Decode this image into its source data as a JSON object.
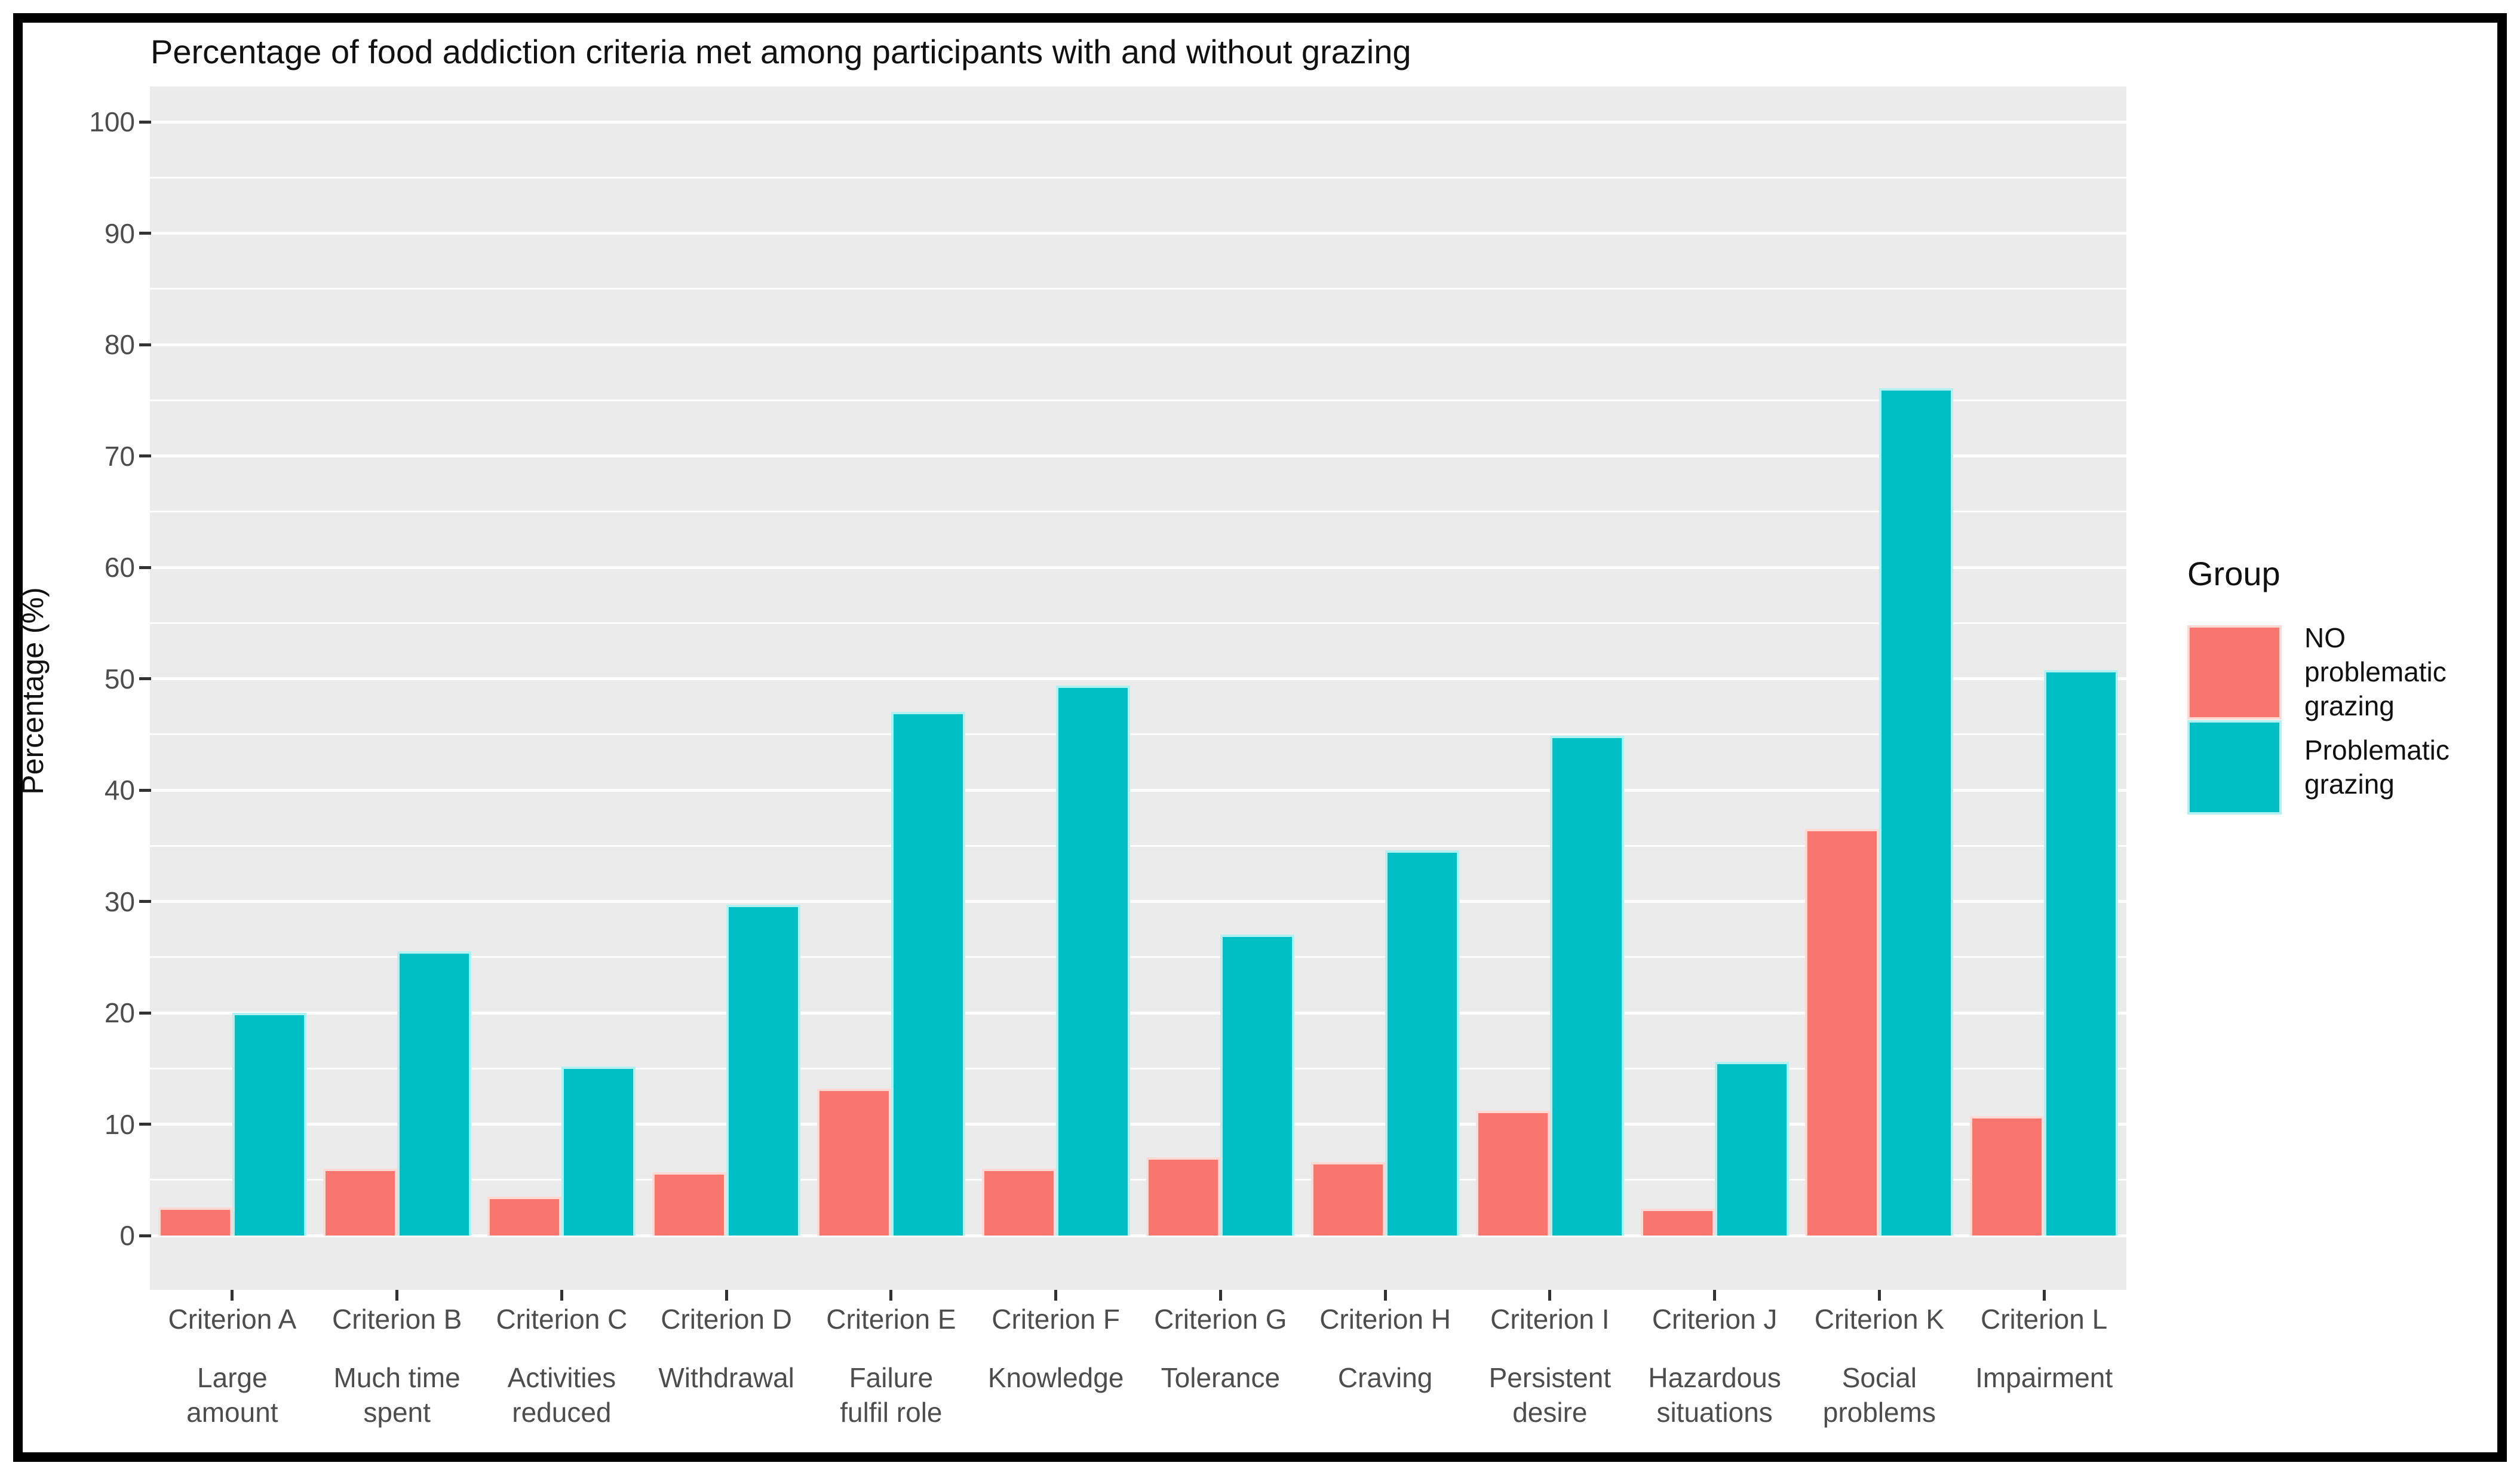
{
  "chart_data": {
    "type": "bar",
    "title": "Percentage of food addiction criteria met among participants with and without grazing",
    "ylabel": "Percentage (%)",
    "xlabel": "",
    "ylim": [
      0,
      100
    ],
    "yticks": [
      0,
      10,
      20,
      30,
      40,
      50,
      60,
      70,
      80,
      90,
      100
    ],
    "minor_tick_interval": 5,
    "grid": "on",
    "panel_background": "#EBEBEB",
    "gridline_color": "#FFFFFF",
    "legend_position": "right",
    "legend_title": "Group",
    "categories": [
      {
        "tick": "Criterion A",
        "label": "Large\namount"
      },
      {
        "tick": "Criterion B",
        "label": "Much time\nspent"
      },
      {
        "tick": "Criterion C",
        "label": "Activities\nreduced"
      },
      {
        "tick": "Criterion D",
        "label": "Withdrawal"
      },
      {
        "tick": "Criterion E",
        "label": "Failure\nfulfil role"
      },
      {
        "tick": "Criterion F",
        "label": "Knowledge"
      },
      {
        "tick": "Criterion G",
        "label": "Tolerance"
      },
      {
        "tick": "Criterion H",
        "label": "Craving"
      },
      {
        "tick": "Criterion I",
        "label": "Persistent\ndesire"
      },
      {
        "tick": "Criterion J",
        "label": "Hazardous\nsituations"
      },
      {
        "tick": "Criterion K",
        "label": "Social\nproblems"
      },
      {
        "tick": "Criterion L",
        "label": "Impairment"
      }
    ],
    "series": [
      {
        "name": "NO problematic grazing",
        "legend_label": "NO\nproblematic\ngrazing",
        "color": "#F8766D",
        "edge_color": "#FFD9D3",
        "values": [
          2.5,
          6.0,
          3.5,
          5.7,
          13.2,
          6.0,
          7.0,
          6.6,
          11.2,
          2.4,
          36.5,
          10.7
        ]
      },
      {
        "name": "Problematic grazing",
        "legend_label": "Problematic\ngrazing",
        "color": "#00BFC4",
        "edge_color": "#B2F1F1",
        "values": [
          20.0,
          25.5,
          15.2,
          29.7,
          47.0,
          49.4,
          27.0,
          34.6,
          44.9,
          15.6,
          76.1,
          50.8
        ]
      }
    ]
  }
}
